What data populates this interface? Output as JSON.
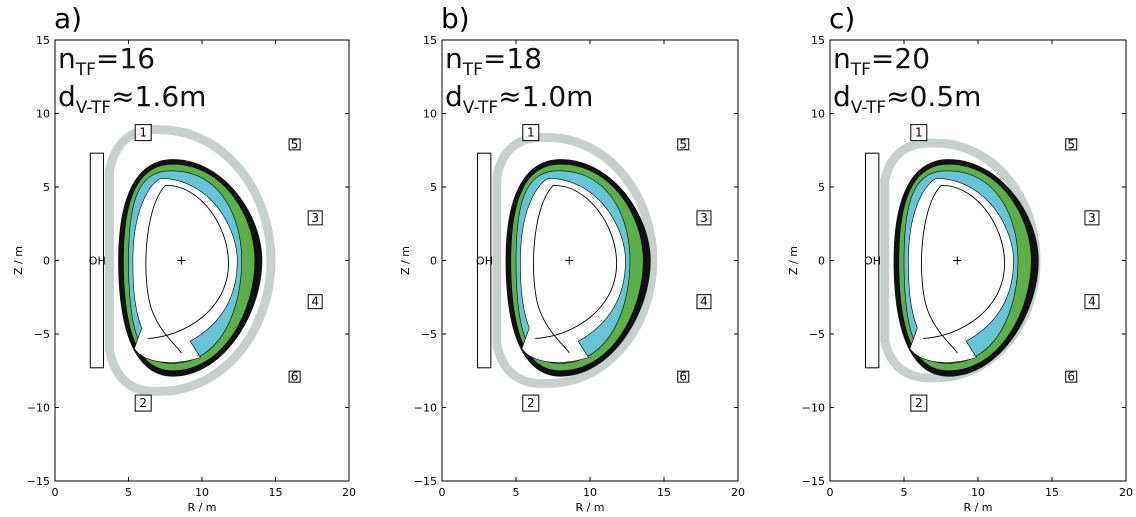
{
  "colors": {
    "tf_coil": "#c8d0cf",
    "vessel": "#111111",
    "blanket_outer": "#5db046",
    "blanket_inner": "#66c4d6",
    "plasma_line": "#000000"
  },
  "panels": [
    {
      "id": "a",
      "label": "a)",
      "n_sym": "n",
      "n_sub": "TF",
      "n_value": "=16",
      "d_sym": "d",
      "d_sub": "V-TF",
      "d_value": "≈1.6m",
      "tf_scale": 1.17,
      "xlabel": "R / m",
      "ylabel": "Z / m",
      "x_ticks": [
        "0",
        "5",
        "10",
        "15",
        "20"
      ],
      "y_ticks": [
        "15",
        "10",
        "5",
        "0",
        "−5",
        "−10",
        "−15"
      ],
      "oh_label": "OH",
      "coils": [
        "1",
        "2",
        "3",
        "4",
        "5",
        "6"
      ]
    },
    {
      "id": "b",
      "label": "b)",
      "n_sym": "n",
      "n_sub": "TF",
      "n_value": "=18",
      "d_sym": "d",
      "d_sub": "V-TF",
      "d_value": "≈1.0m",
      "tf_scale": 1.1,
      "xlabel": "R / m",
      "ylabel": "Z / m",
      "x_ticks": [
        "0",
        "5",
        "10",
        "15",
        "20"
      ],
      "y_ticks": [
        "15",
        "10",
        "5",
        "0",
        "−5",
        "−10",
        "−15"
      ],
      "oh_label": "OH",
      "coils": [
        "1",
        "2",
        "3",
        "4",
        "5",
        "6"
      ]
    },
    {
      "id": "c",
      "label": "c)",
      "n_sym": "n",
      "n_sub": "TF",
      "n_value": "=20",
      "d_sym": "d",
      "d_sub": "V-TF",
      "d_value": "≈0.5m",
      "tf_scale": 1.05,
      "xlabel": "R / m",
      "ylabel": "Z / m",
      "x_ticks": [
        "0",
        "5",
        "10",
        "15",
        "20"
      ],
      "y_ticks": [
        "15",
        "10",
        "5",
        "0",
        "−5",
        "−10",
        "−15"
      ],
      "oh_label": "OH",
      "coils": [
        "1",
        "2",
        "3",
        "4",
        "5",
        "6"
      ]
    }
  ]
}
